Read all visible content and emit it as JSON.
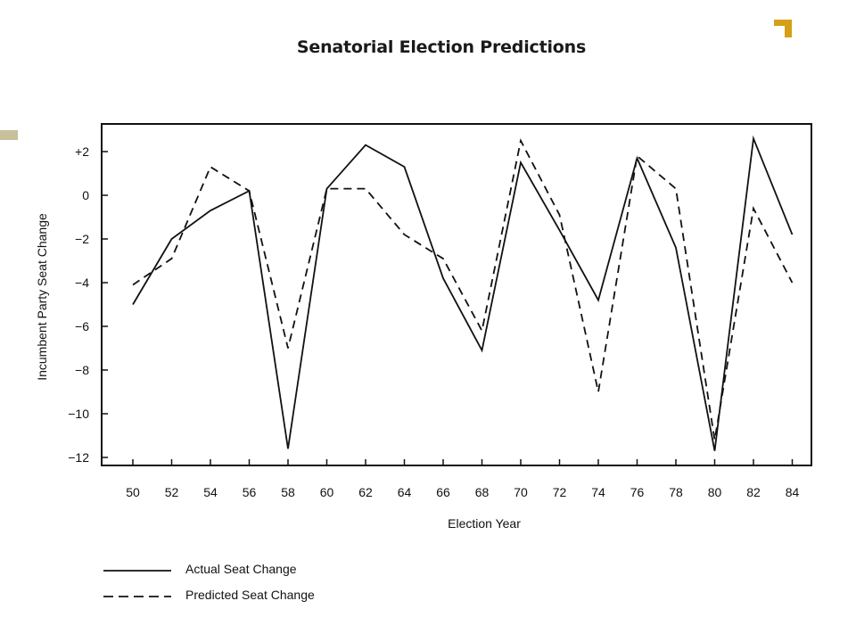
{
  "page": {
    "title": "Senatorial Election Predictions",
    "accent_color": "#d4a017",
    "side_bar_color": "#c8c09a"
  },
  "chart_data": {
    "type": "line",
    "title": "Senatorial Election Predictions",
    "xlabel": "Election Year",
    "ylabel": "Incumbent Party Seat Change",
    "categories": [
      "50",
      "52",
      "54",
      "56",
      "58",
      "60",
      "62",
      "64",
      "66",
      "68",
      "70",
      "72",
      "74",
      "76",
      "78",
      "80",
      "82",
      "84"
    ],
    "yticks": [
      "+2",
      "0",
      "−2",
      "−4",
      "−6",
      "−8",
      "−10",
      "−12"
    ],
    "ytick_values": [
      2,
      0,
      -2,
      -4,
      -6,
      -8,
      -10,
      -12
    ],
    "ylim": [
      -12,
      3.8
    ],
    "grid": false,
    "series": [
      {
        "name": "Actual Seat Change",
        "style": "solid",
        "color": "#111111",
        "values": [
          -5,
          -2,
          -0.7,
          0.2,
          -11.6,
          0.3,
          2.3,
          1.3,
          -3.8,
          -7.1,
          1.5,
          -1.6,
          -4.8,
          1.7,
          -2.4,
          -11.7,
          2.6,
          -1.8
        ]
      },
      {
        "name": "Predicted Seat Change",
        "style": "dashed",
        "color": "#111111",
        "values": [
          -4.1,
          -2.9,
          1.3,
          0.2,
          -7,
          0.3,
          0.3,
          -1.8,
          -2.9,
          -6.2,
          2.5,
          -0.9,
          -9,
          1.8,
          0.3,
          -11.2,
          -0.6,
          -4
        ]
      }
    ],
    "legend_position": "bottom-left"
  }
}
